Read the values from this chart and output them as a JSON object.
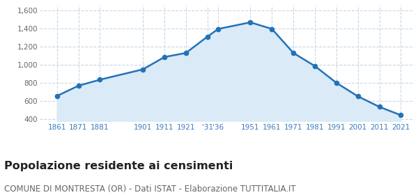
{
  "years": [
    1861,
    1871,
    1881,
    1901,
    1911,
    1921,
    1931,
    1936,
    1951,
    1961,
    1971,
    1981,
    1991,
    2001,
    2011,
    2021
  ],
  "population": [
    655,
    768,
    835,
    949,
    1085,
    1130,
    1310,
    1395,
    1468,
    1395,
    1130,
    985,
    800,
    651,
    535,
    443
  ],
  "line_color": "#2272b8",
  "fill_color": "#daeaf7",
  "marker_color": "#2272b8",
  "background_color": "#ffffff",
  "grid_color": "#c8d8e8",
  "title": "Popolazione residente ai censimenti",
  "subtitle": "COMUNE DI MONTRESTA (OR) - Dati ISTAT - Elaborazione TUTTITALIA.IT",
  "title_fontsize": 11.5,
  "subtitle_fontsize": 8.5,
  "tick_label_color": "#3a7bbf",
  "ylim": [
    380,
    1650
  ],
  "xlim": [
    1853,
    2027
  ]
}
